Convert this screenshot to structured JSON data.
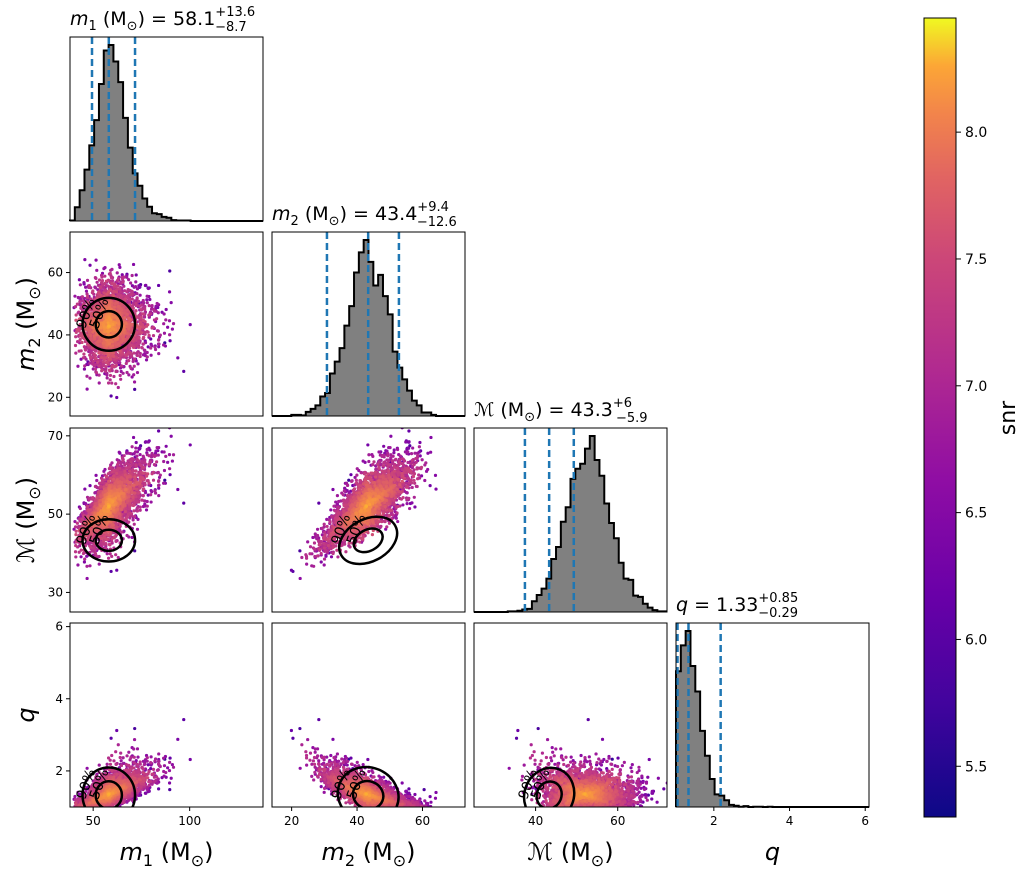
{
  "chart_data": {
    "type": "scatter",
    "subtype": "corner-plot",
    "colorbar": {
      "label": "snr",
      "range": [
        5.3,
        8.45
      ],
      "ticks": [
        "5.5",
        "6.0",
        "6.5",
        "7.0",
        "7.5",
        "8.0"
      ],
      "tick_values": [
        5.5,
        6.0,
        6.5,
        7.0,
        7.5,
        8.0
      ],
      "colormap": "plasma"
    },
    "colors": {
      "histogram_fill": "#808080",
      "quantile_line": "#1f77b4",
      "contour": "#000000"
    },
    "parameters": [
      {
        "key": "m1",
        "label_sym": "m",
        "label_sub": "1",
        "unit": " (M",
        "range": [
          38,
          138
        ],
        "ticks": [
          50,
          100
        ],
        "tick_labels": [
          "50",
          "100"
        ],
        "median": 58.1,
        "lower": 49.4,
        "upper": 71.7,
        "title_value": "58.1",
        "title_plus": "+13.6",
        "title_minus": "−8.7"
      },
      {
        "key": "m2",
        "label_sym": "m",
        "label_sub": "2",
        "unit": " (M",
        "range": [
          14,
          73
        ],
        "ticks": [
          20,
          40,
          60
        ],
        "tick_labels": [
          "20",
          "40",
          "60"
        ],
        "median": 43.4,
        "lower": 30.8,
        "upper": 52.8,
        "title_value": "43.4",
        "title_plus": "+9.4",
        "title_minus": "−12.6"
      },
      {
        "key": "mc",
        "label_sym": "ℳ",
        "label_sub": "",
        "unit": " (M",
        "range": [
          25,
          72
        ],
        "ticks": [
          30,
          50,
          70
        ],
        "tick_labels": [
          "30",
          "50",
          "70"
        ],
        "x_ticks": [
          40,
          60
        ],
        "x_tick_labels": [
          "40",
          "60"
        ],
        "median": 43.3,
        "lower": 37.4,
        "upper": 49.3,
        "title_value": "43.3",
        "title_plus": "+6",
        "title_minus": "−5.9"
      },
      {
        "key": "q",
        "label_sym": "q",
        "label_sub": "",
        "unit": "",
        "range": [
          1.0,
          6.1
        ],
        "ticks": [
          2,
          4,
          6
        ],
        "tick_labels": [
          "2",
          "4",
          "6"
        ],
        "x_ticks": [
          2,
          4,
          6
        ],
        "x_tick_labels": [
          "2",
          "4",
          "6"
        ],
        "median": 1.33,
        "lower": 1.04,
        "upper": 2.18,
        "title_value": "1.33",
        "title_plus": "+0.85",
        "title_minus": "−0.29"
      }
    ],
    "unit_subscript": "⊙",
    "unit_close": ")",
    "contour_levels": [
      "50%",
      "90%"
    ]
  }
}
